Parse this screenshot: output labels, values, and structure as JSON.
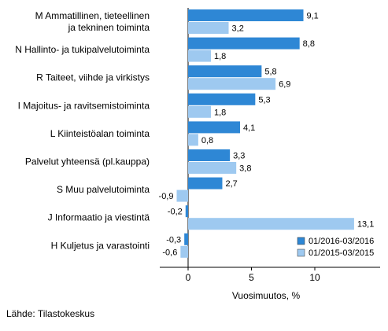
{
  "chart_data": {
    "type": "bar",
    "orientation": "horizontal",
    "categories": [
      [
        "M Ammatillinen, tieteellinen",
        "ja tekninen toiminta"
      ],
      [
        "N Hallinto- ja tukipalvelutoiminta"
      ],
      [
        "R Taiteet, viihde ja virkistys"
      ],
      [
        "I Majoitus- ja ravitsemistoiminta"
      ],
      [
        "L Kiinteistöalan toiminta"
      ],
      [
        "Palvelut yhteensä (pl.kauppa)"
      ],
      [
        "S Muu palvelutoiminta"
      ],
      [
        "J Informaatio ja viestintä"
      ],
      [
        "H Kuljetus ja varastointi"
      ]
    ],
    "series": [
      {
        "name": "01/2016-03/2016",
        "color": "#2e87d5",
        "values": [
          9.1,
          8.8,
          5.8,
          5.3,
          4.1,
          3.3,
          2.7,
          -0.2,
          -0.3
        ],
        "labels": [
          "9,1",
          "8,8",
          "5,8",
          "5,3",
          "4,1",
          "3,3",
          "2,7",
          "-0,2",
          "-0,3"
        ]
      },
      {
        "name": "01/2015-03/2015",
        "color": "#9ec9f0",
        "values": [
          3.2,
          1.8,
          6.9,
          1.8,
          0.8,
          3.8,
          -0.9,
          13.1,
          -0.6
        ],
        "labels": [
          "3,2",
          "1,8",
          "6,9",
          "1,8",
          "0,8",
          "3,8",
          "-0,9",
          "13,1",
          "-0,6"
        ]
      }
    ],
    "xlabel": "Vuosimuutos, %",
    "xlim": [
      -2,
      14.5
    ],
    "xticks": [
      0,
      5,
      10
    ],
    "xtick_labels": [
      "0",
      "5",
      "10"
    ],
    "grid": false,
    "legend_position": "bottom-right"
  },
  "source": "Lähde: Tilastokeskus"
}
